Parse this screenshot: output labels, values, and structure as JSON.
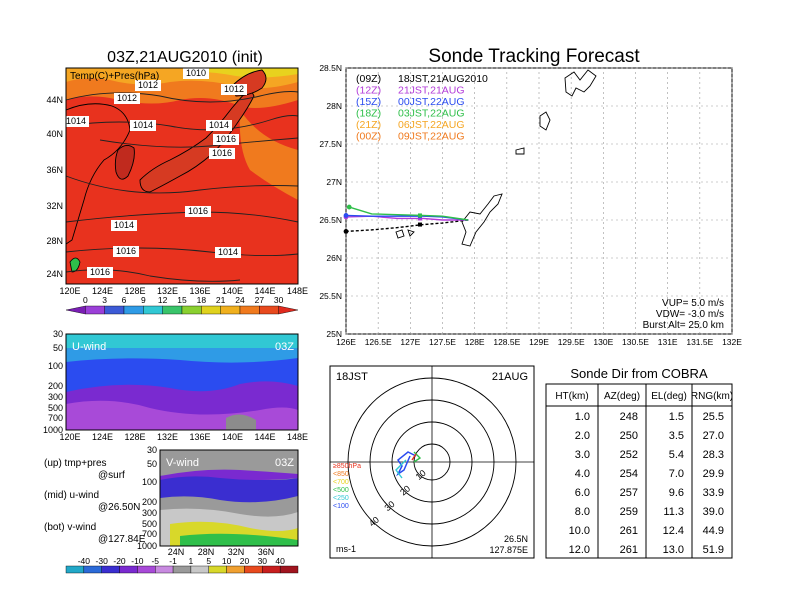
{
  "colors": {
    "warm_red": "#e8321e",
    "orange": "#f07a1e",
    "amber": "#f5a623",
    "yellow": "#e8d21e",
    "land": "#e84a28",
    "blue": "#2b4cf0",
    "purple": "#b23ad8",
    "green": "#2fbf4a",
    "grey": "#8c8c8c"
  },
  "map_panel": {
    "title": "03Z,21AUG2010 (init)",
    "label": "Temp(C)+Pres(hPa)",
    "lat_labels": [
      "44N",
      "40N",
      "36N",
      "32N",
      "28N",
      "24N"
    ],
    "lon_labels": [
      "120E",
      "124E",
      "128E",
      "132E",
      "136E",
      "140E",
      "144E",
      "148E"
    ],
    "isobar_labels": [
      "1010",
      "1012",
      "1012",
      "1012",
      "1014",
      "1014",
      "1014",
      "1014",
      "1014",
      "1016",
      "1016",
      "1016",
      "1016",
      "1016",
      "1010"
    ]
  },
  "temp_colorbar": {
    "ticks": [
      "0",
      "3",
      "6",
      "9",
      "12",
      "15",
      "18",
      "21",
      "24",
      "27",
      "30"
    ],
    "colors": [
      "#7a1eb4",
      "#9b3fd8",
      "#3c5ad6",
      "#2f9be6",
      "#31c8d4",
      "#39c46a",
      "#8ad030",
      "#e0d21e",
      "#f0b01e",
      "#f07a1e",
      "#e84a1e",
      "#e02a1e"
    ]
  },
  "uwind_panel": {
    "label": "U-wind",
    "time": "03Z",
    "pres_labels": [
      "30",
      "50",
      "100",
      "200",
      "300",
      "500",
      "700",
      "1000"
    ],
    "lon_labels": [
      "120E",
      "124E",
      "128E",
      "132E",
      "136E",
      "140E",
      "144E",
      "148E"
    ]
  },
  "vwind_panel": {
    "label": "V-wind",
    "time": "03Z",
    "pres_labels": [
      "30",
      "50",
      "100",
      "200",
      "300",
      "500",
      "700",
      "1000"
    ],
    "lat_labels": [
      "24N",
      "28N",
      "32N",
      "36N"
    ]
  },
  "panel_notes": [
    {
      "a": "(up) tmp+pres",
      "b": "@surf"
    },
    {
      "a": "(mid) u-wind",
      "b": "@26.50N"
    },
    {
      "a": "(bot) v-wind",
      "b": "@127.84E"
    }
  ],
  "wind_colorbar": {
    "ticks": [
      "-40",
      "-30",
      "-20",
      "-10",
      "-5",
      "-1",
      "1",
      "5",
      "10",
      "20",
      "30",
      "40"
    ],
    "colors": [
      "#22a8c8",
      "#2b6ad8",
      "#3a2ed0",
      "#7a2ad0",
      "#a84ad8",
      "#c88ae0",
      "#9a9a9a",
      "#c8c8c8",
      "#d8d82a",
      "#f0a030",
      "#e84a1e",
      "#c81e1e",
      "#a0141e"
    ]
  },
  "tracking": {
    "title": "Sonde Tracking Forecast",
    "legend": [
      {
        "id": "(09Z)",
        "time": "18JST,21AUG2010",
        "color": "#000000"
      },
      {
        "id": "(12Z)",
        "time": "21JST,21AUG",
        "color": "#b23ad8"
      },
      {
        "id": "(15Z)",
        "time": "00JST,22AUG",
        "color": "#2b4cf0"
      },
      {
        "id": "(18Z)",
        "time": "03JST,22AUG",
        "color": "#2fbf4a"
      },
      {
        "id": "(21Z)",
        "time": "06JST,22AUG",
        "color": "#f5a623"
      },
      {
        "id": "(00Z)",
        "time": "09JST,22AUG",
        "color": "#f07a1e"
      }
    ],
    "info": [
      "VUP= 5.0 m/s",
      "VDW= -3.0 m/s",
      "Burst Alt= 25.0 km"
    ]
  },
  "polar": {
    "label_left": "18JST",
    "label_right": "21AUG",
    "ring_labels": [
      "10",
      "20",
      "30",
      "40"
    ],
    "pressure_legend": [
      "≥850hPa",
      "<850",
      "<700",
      "<500",
      "<250",
      "<100"
    ],
    "legend_colors": [
      "#e8321e",
      "#f07a1e",
      "#e8d21e",
      "#2fbf4a",
      "#31c8d4",
      "#2b4cf0"
    ],
    "units": "ms-1",
    "location_lat": "26.5N",
    "location_lon": "127.875E"
  },
  "sonde_table": {
    "title": "Sonde Dir from COBRA",
    "headers": [
      "HT(km)",
      "AZ(deg)",
      "EL(deg)",
      "RNG(km)"
    ],
    "rows": [
      [
        "1.0",
        "248",
        "1.5",
        "25.5"
      ],
      [
        "2.0",
        "250",
        "3.5",
        "27.0"
      ],
      [
        "3.0",
        "252",
        "5.4",
        "28.3"
      ],
      [
        "4.0",
        "254",
        "7.0",
        "29.9"
      ],
      [
        "6.0",
        "257",
        "9.6",
        "33.9"
      ],
      [
        "8.0",
        "259",
        "11.3",
        "39.0"
      ],
      [
        "10.0",
        "261",
        "12.4",
        "44.9"
      ],
      [
        "12.0",
        "261",
        "13.0",
        "51.9"
      ]
    ]
  },
  "chart_data": {
    "type": "line",
    "title": "Sonde Tracking Forecast",
    "xlabel": "",
    "ylabel": "",
    "xlim": [
      126,
      132
    ],
    "ylim": [
      25,
      28.5
    ],
    "x_ticks": [
      "126E",
      "126.5E",
      "127E",
      "127.5E",
      "128E",
      "128.5E",
      "129E",
      "129.5E",
      "130E",
      "130.5E",
      "131E",
      "131.5E",
      "132E"
    ],
    "y_ticks": [
      "25N",
      "25.5N",
      "26N",
      "26.5N",
      "27N",
      "27.5N",
      "28N",
      "28.5N"
    ],
    "grid": true,
    "legend_position": "top-left",
    "series": [
      {
        "name": "(09Z) 18JST,21AUG2010",
        "color": "#000000",
        "x": [
          127.9,
          127.5,
          127.2,
          126.8,
          126.4,
          126.0
        ],
        "y": [
          26.5,
          26.46,
          26.44,
          26.4,
          26.37,
          26.35
        ]
      },
      {
        "name": "(12Z) 21JST,21AUG",
        "color": "#b23ad8",
        "x": [
          127.9,
          127.5,
          127.2,
          126.8,
          126.4,
          126.0
        ],
        "y": [
          26.5,
          26.5,
          26.52,
          26.52,
          26.55,
          26.54
        ]
      },
      {
        "name": "(15Z) 00JST,22AUG",
        "color": "#2b4cf0",
        "x": [
          127.9,
          127.5,
          127.2,
          126.8,
          126.4,
          126.0
        ],
        "y": [
          26.5,
          26.54,
          26.55,
          26.55,
          26.55,
          26.56
        ]
      },
      {
        "name": "(18Z) 03JST,22AUG",
        "color": "#2fbf4a",
        "x": [
          127.9,
          127.5,
          127.2,
          126.8,
          126.4,
          126.05
        ],
        "y": [
          26.5,
          26.55,
          26.56,
          26.57,
          26.58,
          26.67
        ]
      }
    ]
  }
}
